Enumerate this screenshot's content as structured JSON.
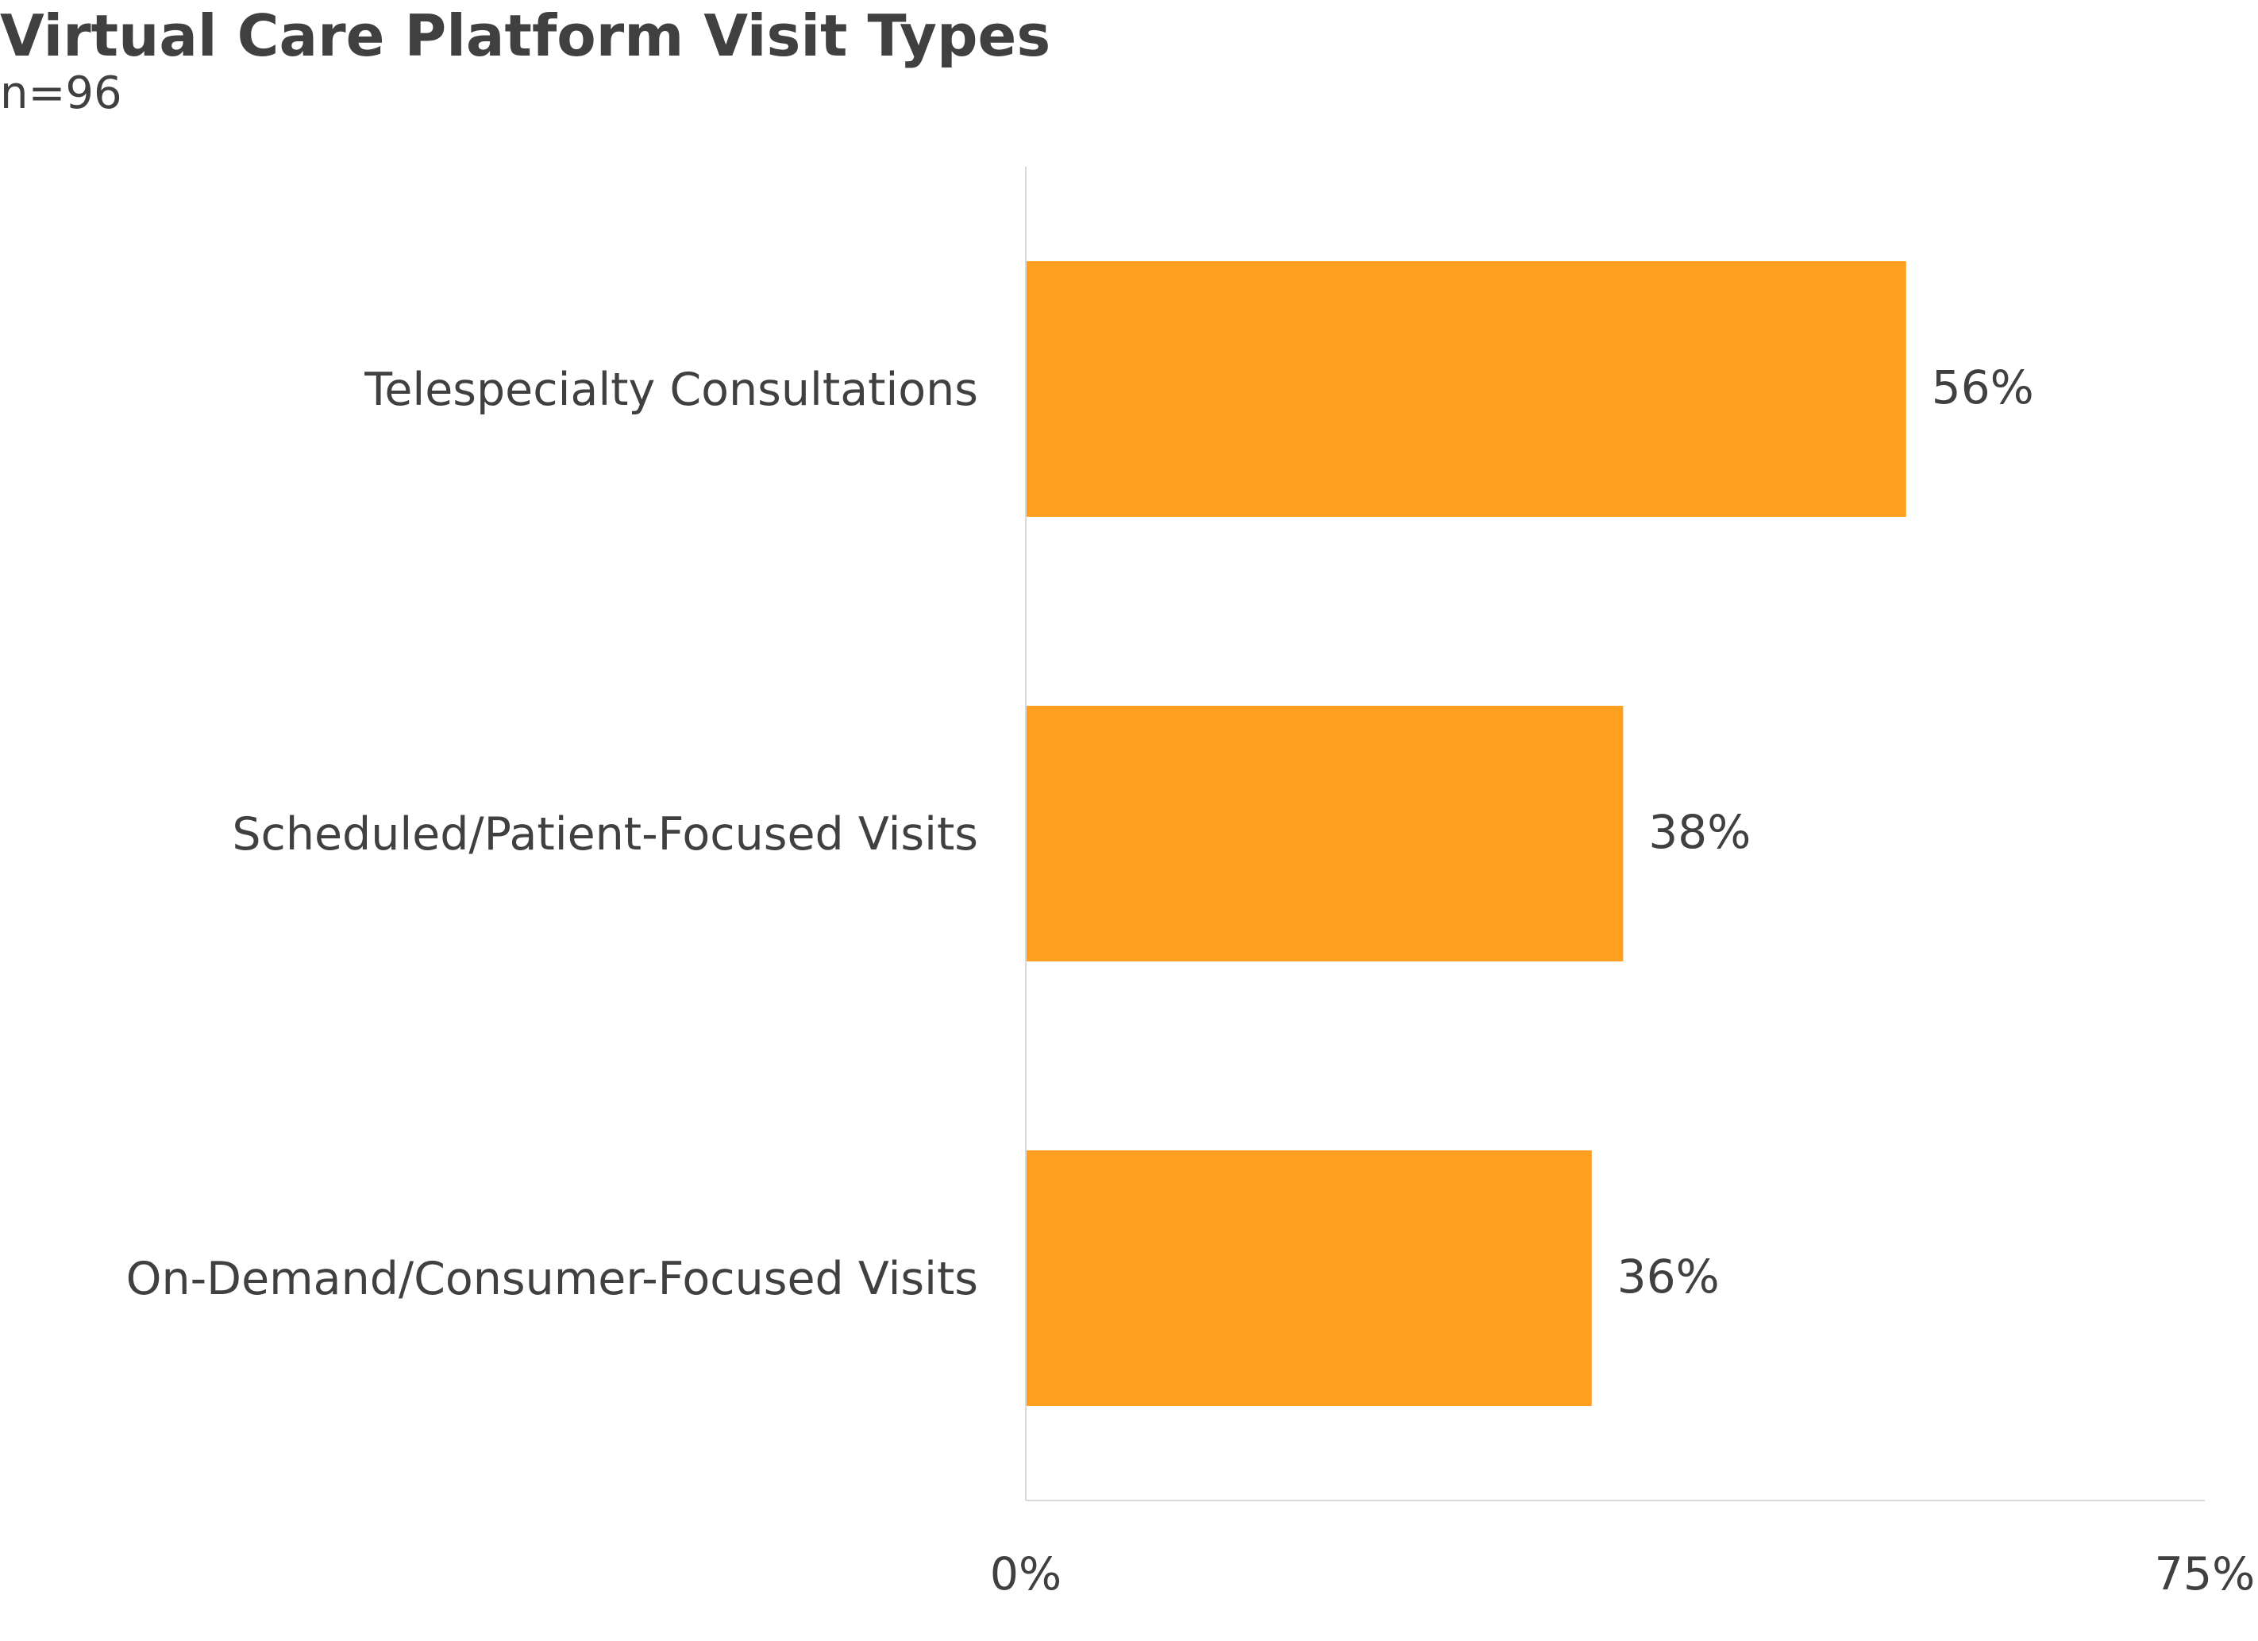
{
  "chart_data": {
    "type": "bar",
    "orientation": "horizontal",
    "title": "Virtual Care Platform Visit Types",
    "subtitle": "n=96",
    "categories": [
      "Telespecialty Consultations",
      "Scheduled/Patient-Focused Visits",
      "On-Demand/Consumer-Focused Visits"
    ],
    "values": [
      56,
      38,
      36
    ],
    "data_labels": [
      "56%",
      "38%",
      "36%"
    ],
    "xlim": [
      0,
      75
    ],
    "x_ticks": [
      0,
      75
    ],
    "x_tick_labels": [
      "0%",
      "75%"
    ],
    "xlabel": "",
    "ylabel": "",
    "grid": false,
    "legend": "none",
    "bar_color": "#FF9F1F",
    "axis_color": "#D9D9D9",
    "text_color": "#404040"
  }
}
